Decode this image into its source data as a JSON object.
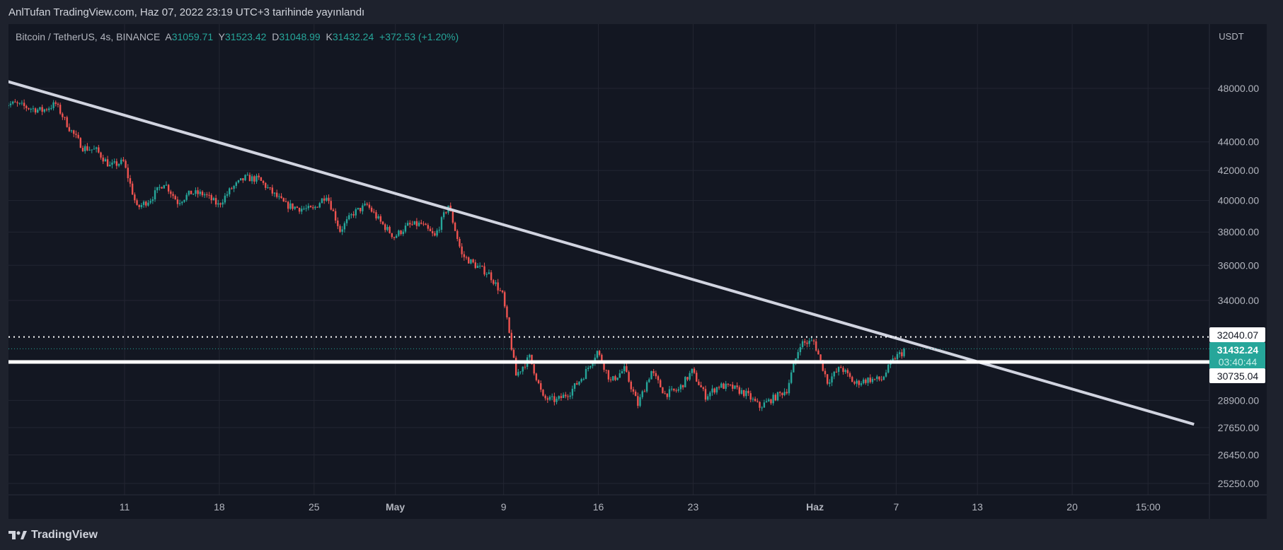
{
  "header": {
    "published": "AnlTufan TradingView.com, Haz 07, 2022 23:19 UTC+3 tarihinde yayınlandı"
  },
  "legend": {
    "symbol": "Bitcoin / TetherUS, 4s, BINANCE",
    "open_label": "A",
    "open": "31059.71",
    "high_label": "Y",
    "high": "31523.42",
    "low_label": "D",
    "low": "31048.99",
    "close_label": "K",
    "close": "31432.24",
    "change": "+372.53 (+1.20%)"
  },
  "logo": {
    "text": "TradingView"
  },
  "colors": {
    "up": "#26a69a",
    "down": "#ef5350",
    "bg": "#131722",
    "frame": "#1e222d",
    "trend": "#d1d4e0",
    "grid": "#232632"
  },
  "chart_data": {
    "type": "candlestick",
    "interval": "4h",
    "scale": "log",
    "currency": "USDT",
    "start_date": "Apr 2",
    "daily_closes": [
      46800,
      46500,
      46300,
      46800,
      45000,
      43600,
      43400,
      42300,
      42600,
      39500,
      40100,
      41200,
      39900,
      40500,
      40400,
      39700,
      40800,
      41500,
      41400,
      40500,
      39700,
      39500,
      39400,
      40400,
      38100,
      39200,
      39700,
      38600,
      37700,
      38400,
      38500,
      37700,
      39700,
      36600,
      36000,
      35500,
      34300,
      30100,
      31000,
      29000,
      28900,
      29300,
      30100,
      31300,
      29800,
      30400,
      28700,
      30300,
      29200,
      29400,
      30300,
      29100,
      29600,
      29500,
      29200,
      28600,
      29000,
      29400,
      31700,
      31800,
      29800,
      30500,
      29700,
      29900,
      29900,
      31000,
      31432.24
    ],
    "y_ticks": [
      "48000.00",
      "44000.00",
      "42000.00",
      "40000.00",
      "38000.00",
      "36000.00",
      "34000.00",
      "28900.00",
      "27650.00",
      "26450.00",
      "25250.00"
    ],
    "x_ticks": [
      {
        "label": "11",
        "day": 9
      },
      {
        "label": "18",
        "day": 16
      },
      {
        "label": "25",
        "day": 23
      },
      {
        "label": "May",
        "day": 29
      },
      {
        "label": "9",
        "day": 37
      },
      {
        "label": "16",
        "day": 44
      },
      {
        "label": "23",
        "day": 51
      },
      {
        "label": "Haz",
        "day": 60
      },
      {
        "label": "7",
        "day": 66
      },
      {
        "label": "13",
        "day": 72
      },
      {
        "label": "20",
        "day": 79
      },
      {
        "label": "15:00",
        "day": 84.6
      }
    ],
    "trendline": {
      "from": {
        "day": -0.8,
        "price": 48900
      },
      "to": {
        "day": 88,
        "price": 27800
      }
    },
    "horizontal_line": {
      "price": 30735.04,
      "label": "30735.04"
    },
    "dotted_line": {
      "price": 32040.07,
      "label": "32040.07"
    },
    "last_price": {
      "price": 31432.24,
      "label": "31432.24",
      "countdown": "03:40:44"
    }
  }
}
